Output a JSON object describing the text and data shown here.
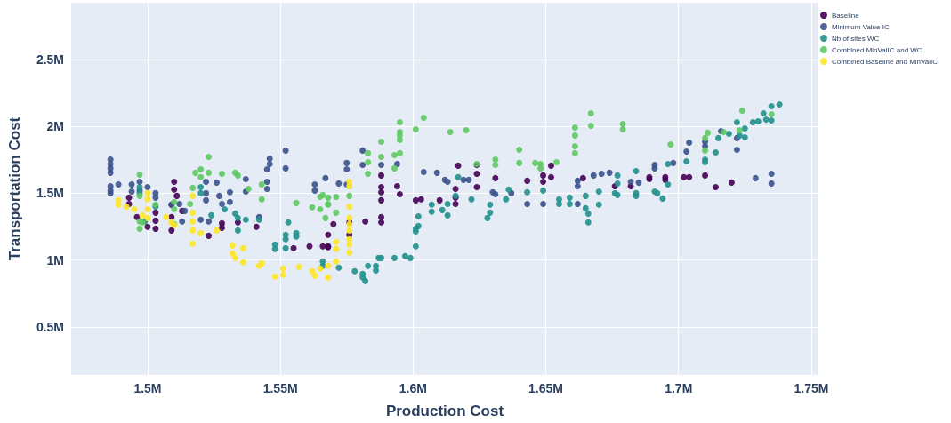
{
  "chart_data": {
    "type": "scatter",
    "xlabel": "Production Cost",
    "ylabel": "Transportation Cost",
    "xlim": [
      1471200,
      1752700
    ],
    "ylim": [
      140000,
      2925000
    ],
    "xticks": [
      {
        "value": 1500000,
        "label": "1.5M"
      },
      {
        "value": 1550000,
        "label": "1.55M"
      },
      {
        "value": 1600000,
        "label": "1.6M"
      },
      {
        "value": 1650000,
        "label": "1.65M"
      },
      {
        "value": 1700000,
        "label": "1.7M"
      },
      {
        "value": 1750000,
        "label": "1.75M"
      }
    ],
    "yticks": [
      {
        "value": 500000,
        "label": "0.5M"
      },
      {
        "value": 1000000,
        "label": "1M"
      },
      {
        "value": 1500000,
        "label": "1.5M"
      },
      {
        "value": 2000000,
        "label": "2M"
      },
      {
        "value": 2500000,
        "label": "2.5M"
      }
    ],
    "grid": true,
    "legend": "top right",
    "marker": "circle",
    "series": [
      {
        "name": "Baseline",
        "color": "#440154",
        "x": [
          1493000,
          1493000,
          1496000,
          1500000,
          1503000,
          1503000,
          1503000,
          1509000,
          1509000,
          1509000,
          1510000,
          1510000,
          1511000,
          1513000,
          1523000,
          1528000,
          1528000,
          1534000,
          1541000,
          1555000,
          1561000,
          1566000,
          1568000,
          1568000,
          1570000,
          1568000,
          1576000,
          1576000,
          1582000,
          1588000,
          1588000,
          1588000,
          1588000,
          1588000,
          1588000,
          1594000,
          1595000,
          1601000,
          1603000,
          1610000,
          1616000,
          1616000,
          1616000,
          1617000,
          1624000,
          1624000,
          1624000,
          1631000,
          1643000,
          1649000,
          1649000,
          1652000,
          1652000,
          1664000,
          1676000,
          1682000,
          1689000,
          1689000,
          1695000,
          1695000,
          1702000,
          1704000,
          1710000,
          1714000,
          1720000
        ],
        "values": [
          1467000,
          1420000,
          1321000,
          1248000,
          1354000,
          1294000,
          1234000,
          1414000,
          1321000,
          1221000,
          1586000,
          1527000,
          1480000,
          1367000,
          1181000,
          1274000,
          1241000,
          1281000,
          1248000,
          1088000,
          1102000,
          1102000,
          1102000,
          1188000,
          1268000,
          1095000,
          1281000,
          1188000,
          1288000,
          1633000,
          1546000,
          1507000,
          1447000,
          1321000,
          1281000,
          1553000,
          1493000,
          1447000,
          1454000,
          1447000,
          1533000,
          1467000,
          1420000,
          1706000,
          1646000,
          1546000,
          1712000,
          1613000,
          1593000,
          1633000,
          1586000,
          1620000,
          1706000,
          1613000,
          1553000,
          1553000,
          1620000,
          1606000,
          1620000,
          1600000,
          1620000,
          1620000,
          1633000,
          1546000,
          1580000
        ]
      },
      {
        "name": "Minimum Value IC",
        "color": "#3b528b",
        "x": [
          1486000,
          1486000,
          1486000,
          1486000,
          1486000,
          1486000,
          1486000,
          1489000,
          1494000,
          1494000,
          1497000,
          1497000,
          1500000,
          1503000,
          1503000,
          1509000,
          1512000,
          1514000,
          1513000,
          1520000,
          1522000,
          1522000,
          1522000,
          1523000,
          1526000,
          1527000,
          1528000,
          1531000,
          1531000,
          1537000,
          1537000,
          1542000,
          1545000,
          1545000,
          1545000,
          1546000,
          1546000,
          1552000,
          1552000,
          1563000,
          1563000,
          1567000,
          1572000,
          1575000,
          1575000,
          1575000,
          1581000,
          1581000,
          1588000,
          1594000,
          1604000,
          1609000,
          1612000,
          1613000,
          1619000,
          1621000,
          1630000,
          1631000,
          1637000,
          1643000,
          1649000,
          1662000,
          1662000,
          1662000,
          1668000,
          1671000,
          1674000,
          1682000,
          1685000,
          1691000,
          1691000,
          1698000,
          1703000,
          1704000,
          1710000,
          1710000,
          1716000,
          1722000,
          1722000,
          1729000,
          1735000,
          1735000
        ],
        "values": [
          1752000,
          1719000,
          1686000,
          1653000,
          1553000,
          1520000,
          1500000,
          1566000,
          1566000,
          1513000,
          1586000,
          1520000,
          1546000,
          1500000,
          1467000,
          1414000,
          1420000,
          1367000,
          1288000,
          1301000,
          1586000,
          1500000,
          1447000,
          1288000,
          1580000,
          1480000,
          1420000,
          1507000,
          1434000,
          1606000,
          1513000,
          1321000,
          1679000,
          1586000,
          1533000,
          1759000,
          1719000,
          1819000,
          1686000,
          1566000,
          1520000,
          1613000,
          1573000,
          1726000,
          1679000,
          1566000,
          1819000,
          1712000,
          1712000,
          1719000,
          1659000,
          1653000,
          1600000,
          1586000,
          1600000,
          1600000,
          1507000,
          1493000,
          1500000,
          1420000,
          1420000,
          1593000,
          1553000,
          1420000,
          1633000,
          1646000,
          1653000,
          1586000,
          1580000,
          1712000,
          1686000,
          1726000,
          1812000,
          1878000,
          1885000,
          1852000,
          1965000,
          1912000,
          1825000,
          1613000,
          1646000,
          1573000
        ]
      },
      {
        "name": "Nb of sites WC",
        "color": "#21918c",
        "x": [
          1497000,
          1497000,
          1499000,
          1503000,
          1520000,
          1520000,
          1524000,
          1529000,
          1533000,
          1534000,
          1534000,
          1537000,
          1542000,
          1548000,
          1548000,
          1552000,
          1552000,
          1552000,
          1553000,
          1556000,
          1556000,
          1566000,
          1566000,
          1572000,
          1578000,
          1581000,
          1581000,
          1582000,
          1583000,
          1586000,
          1586000,
          1587000,
          1588000,
          1593000,
          1597000,
          1599000,
          1601000,
          1601000,
          1601000,
          1602000,
          1602000,
          1607000,
          1607000,
          1611000,
          1613000,
          1613000,
          1616000,
          1617000,
          1622000,
          1628000,
          1629000,
          1629000,
          1635000,
          1636000,
          1643000,
          1649000,
          1655000,
          1655000,
          1659000,
          1659000,
          1665000,
          1666000,
          1665000,
          1666000,
          1670000,
          1670000,
          1677000,
          1677000,
          1676000,
          1677000,
          1684000,
          1684000,
          1684000,
          1691000,
          1692000,
          1694000,
          1696000,
          1696000,
          1703000,
          1710000,
          1710000,
          1714000,
          1715000,
          1719000,
          1722000,
          1723000,
          1725000,
          1725000,
          1728000,
          1730000,
          1732000,
          1733000,
          1735000,
          1735000,
          1738000
        ],
        "values": [
          1546000,
          1500000,
          1288000,
          1400000,
          1546000,
          1500000,
          1334000,
          1380000,
          1347000,
          1314000,
          1221000,
          1301000,
          1301000,
          1115000,
          1082000,
          1188000,
          1155000,
          1088000,
          1281000,
          1201000,
          1175000,
          989000,
          956000,
          942000,
          916000,
          896000,
          869000,
          843000,
          956000,
          956000,
          922000,
          1015000,
          1015000,
          1015000,
          1029000,
          1015000,
          1102000,
          1214000,
          1234000,
          1254000,
          1327000,
          1414000,
          1361000,
          1374000,
          1334000,
          1420000,
          1480000,
          1620000,
          1454000,
          1314000,
          1354000,
          1414000,
          1454000,
          1527000,
          1507000,
          1520000,
          1454000,
          1420000,
          1467000,
          1420000,
          1387000,
          1281000,
          1480000,
          1347000,
          1513000,
          1414000,
          1633000,
          1573000,
          1500000,
          1487000,
          1666000,
          1500000,
          1480000,
          1513000,
          1500000,
          1460000,
          1719000,
          1566000,
          1739000,
          1752000,
          1732000,
          1805000,
          1912000,
          1945000,
          2031000,
          1932000,
          1918000,
          1985000,
          2031000,
          2038000,
          2098000,
          2051000,
          2151000,
          2044000,
          2164000
        ]
      },
      {
        "name": "Combined MinValIC and WC",
        "color": "#5ec962",
        "x": [
          1497000,
          1497000,
          1497000,
          1497000,
          1498000,
          1503000,
          1510000,
          1510000,
          1510000,
          1517000,
          1518000,
          1520000,
          1520000,
          1516000,
          1523000,
          1523000,
          1528000,
          1533000,
          1534000,
          1538000,
          1543000,
          1543000,
          1556000,
          1562000,
          1565000,
          1565000,
          1566000,
          1568000,
          1567000,
          1568000,
          1568000,
          1571000,
          1571000,
          1576000,
          1576000,
          1583000,
          1583000,
          1583000,
          1588000,
          1588000,
          1593000,
          1595000,
          1593000,
          1595000,
          1595000,
          1595000,
          1595000,
          1601000,
          1604000,
          1614000,
          1620000,
          1624000,
          1631000,
          1631000,
          1640000,
          1640000,
          1646000,
          1648000,
          1648000,
          1654000,
          1661000,
          1661000,
          1661000,
          1661000,
          1667000,
          1667000,
          1679000,
          1679000,
          1697000,
          1710000,
          1710000,
          1711000,
          1717000,
          1723000,
          1724000,
          1735000
        ],
        "values": [
          1639000,
          1480000,
          1288000,
          1234000,
          1281000,
          1414000,
          1434000,
          1380000,
          1268000,
          1540000,
          1653000,
          1679000,
          1620000,
          1420000,
          1653000,
          1772000,
          1646000,
          1653000,
          1633000,
          1533000,
          1566000,
          1454000,
          1427000,
          1394000,
          1380000,
          1473000,
          1487000,
          1414000,
          1314000,
          1467000,
          1420000,
          1473000,
          1354000,
          1553000,
          1480000,
          1799000,
          1732000,
          1646000,
          1885000,
          1772000,
          1785000,
          1799000,
          1686000,
          2031000,
          1958000,
          1932000,
          1898000,
          1978000,
          2064000,
          1958000,
          1971000,
          1719000,
          1752000,
          1712000,
          1825000,
          1726000,
          1726000,
          1719000,
          1686000,
          1732000,
          1991000,
          1932000,
          1852000,
          1799000,
          2098000,
          2005000,
          2018000,
          1978000,
          1865000,
          1912000,
          1819000,
          1952000,
          1958000,
          1971000,
          2118000,
          2091000
        ]
      },
      {
        "name": "Combined Baseline and MinValIC",
        "color": "#fde725",
        "x": [
          1489000,
          1489000,
          1492000,
          1495000,
          1498000,
          1500000,
          1500000,
          1500000,
          1500000,
          1507000,
          1509000,
          1510000,
          1517000,
          1517000,
          1517000,
          1517000,
          1517000,
          1520000,
          1526000,
          1532000,
          1532000,
          1533000,
          1536000,
          1536000,
          1542000,
          1543000,
          1548000,
          1551000,
          1551000,
          1557000,
          1562000,
          1563000,
          1565000,
          1568000,
          1568000,
          1571000,
          1571000,
          1571000,
          1576000,
          1576000,
          1576000,
          1576000,
          1576000,
          1576000,
          1576000,
          1576000,
          1576000
        ],
        "values": [
          1447000,
          1414000,
          1400000,
          1380000,
          1334000,
          1500000,
          1454000,
          1380000,
          1314000,
          1321000,
          1281000,
          1261000,
          1480000,
          1354000,
          1288000,
          1221000,
          1122000,
          1201000,
          1221000,
          1108000,
          1048000,
          1015000,
          1088000,
          982000,
          956000,
          975000,
          876000,
          936000,
          889000,
          949000,
          916000,
          882000,
          936000,
          956000,
          869000,
          1135000,
          1082000,
          989000,
          1586000,
          1553000,
          1400000,
          1314000,
          1268000,
          1221000,
          1155000,
          1115000,
          1055000
        ]
      }
    ]
  }
}
